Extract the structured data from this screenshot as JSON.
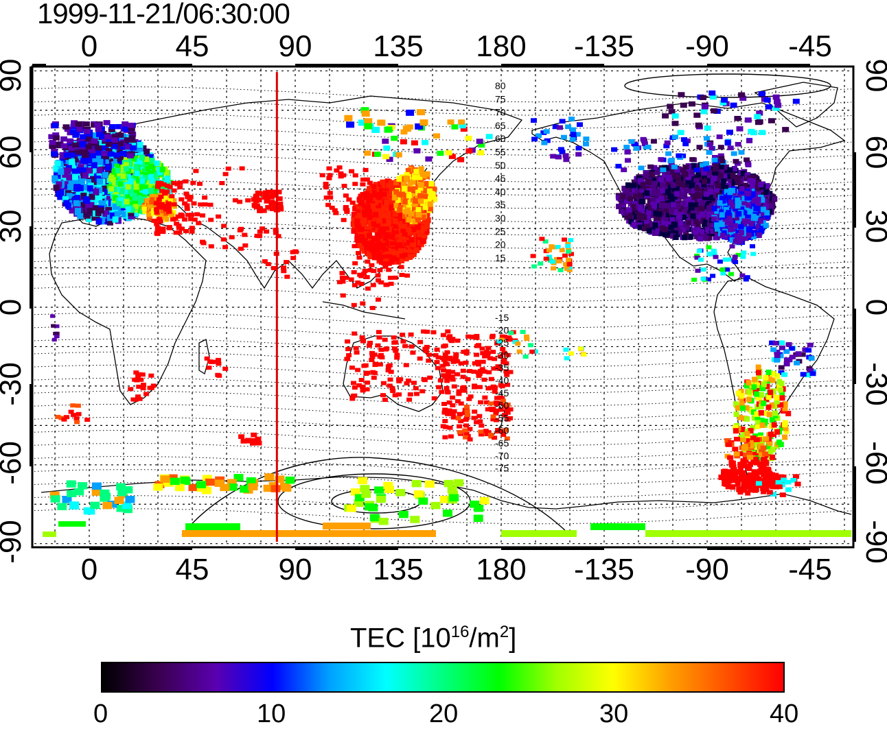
{
  "title": "1999-11-21/06:30:00",
  "map": {
    "lon_ticks_top": [
      "0",
      "45",
      "90",
      "135",
      "180",
      "-135",
      "-90",
      "-45"
    ],
    "lon_ticks_bottom": [
      "0",
      "45",
      "90",
      "135",
      "180",
      "-135",
      "-90",
      "-45"
    ],
    "lat_ticks_left": [
      "90",
      "60",
      "30",
      "0",
      "-30",
      "-60",
      "-90"
    ],
    "lat_ticks_right": [
      "90",
      "60",
      "30",
      "0",
      "-30",
      "-60",
      "-90"
    ],
    "magnetic_lat_labels_north": [
      "80",
      "75",
      "70",
      "65",
      "60",
      "55",
      "50",
      "45",
      "40",
      "35",
      "30",
      "25",
      "20",
      "15"
    ],
    "magnetic_lat_labels_south": [
      "-15",
      "-20",
      "-25",
      "-30",
      "-35",
      "-40",
      "-45",
      "-50",
      "-55",
      "-60",
      "-65",
      "-70",
      "-75"
    ],
    "terminator_longitude_deg": 82
  },
  "colorbar": {
    "label_prefix": "TEC  [10",
    "label_exp1": "16",
    "label_mid": "/m",
    "label_exp2": "2",
    "label_suffix": "]",
    "ticks": [
      "0",
      "10",
      "20",
      "30",
      "40"
    ],
    "colors": [
      "#000000",
      "#3a0050",
      "#5a00b0",
      "#0000ff",
      "#00a0ff",
      "#00ffff",
      "#00ff80",
      "#00ff00",
      "#a0ff00",
      "#ffff00",
      "#ffa000",
      "#ff5000",
      "#ff0000"
    ]
  }
}
